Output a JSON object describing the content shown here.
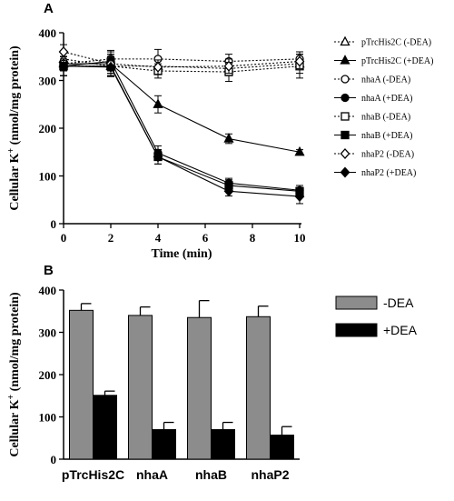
{
  "chart_data": [
    {
      "panel": "A",
      "type": "line",
      "xlabel": "Time (min)",
      "ylabel_main": "Cellular K",
      "ylabel_sup": "+",
      "ylabel_tail": " (nmol/mg protein)",
      "xlim": [
        0,
        10
      ],
      "ylim": [
        0,
        400
      ],
      "x_ticks": [
        "0",
        "2",
        "4",
        "6",
        "8",
        "10"
      ],
      "y_ticks": [
        "0",
        "100",
        "200",
        "300",
        "400"
      ],
      "legend_position": "right",
      "x": [
        0,
        2,
        4,
        7,
        10
      ],
      "series": [
        {
          "name": "pTrcHis2C (-DEA)",
          "marker": "triangle",
          "filled": false,
          "dotted": true,
          "values": [
            345,
            330,
            330,
            325,
            335
          ],
          "err": [
            15,
            20,
            15,
            15,
            20
          ]
        },
        {
          "name": "pTrcHis2C (+DEA)",
          "marker": "triangle",
          "filled": true,
          "dotted": false,
          "values": [
            335,
            335,
            250,
            178,
            150
          ],
          "err": [
            15,
            20,
            18,
            10,
            5
          ]
        },
        {
          "name": "nhaA (-DEA)",
          "marker": "circle",
          "filled": false,
          "dotted": true,
          "values": [
            335,
            345,
            345,
            340,
            345
          ],
          "err": [
            15,
            18,
            20,
            15,
            15
          ]
        },
        {
          "name": "nhaA (+DEA)",
          "marker": "circle",
          "filled": true,
          "dotted": false,
          "values": [
            330,
            340,
            148,
            85,
            70
          ],
          "err": [
            20,
            20,
            15,
            10,
            10
          ]
        },
        {
          "name": "nhaB (-DEA)",
          "marker": "square",
          "filled": false,
          "dotted": true,
          "values": [
            330,
            330,
            320,
            318,
            330
          ],
          "err": [
            20,
            20,
            15,
            20,
            25
          ]
        },
        {
          "name": "nhaB (+DEA)",
          "marker": "square",
          "filled": true,
          "dotted": false,
          "values": [
            330,
            330,
            140,
            80,
            68
          ],
          "err": [
            20,
            20,
            15,
            12,
            8
          ]
        },
        {
          "name": "nhaP2 (-DEA)",
          "marker": "diamond",
          "filled": false,
          "dotted": true,
          "values": [
            360,
            335,
            328,
            330,
            340
          ],
          "err": [
            15,
            20,
            15,
            15,
            15
          ]
        },
        {
          "name": "nhaP2 (+DEA)",
          "marker": "diamond",
          "filled": true,
          "dotted": false,
          "values": [
            330,
            328,
            140,
            68,
            57
          ],
          "err": [
            20,
            20,
            15,
            10,
            15
          ]
        }
      ]
    },
    {
      "panel": "B",
      "type": "bar",
      "ylabel_main": "Cellular K",
      "ylabel_sup": "+",
      "ylabel_tail": " (nmol/mg protein)",
      "ylim": [
        0,
        400
      ],
      "y_ticks": [
        "0",
        "100",
        "200",
        "300",
        "400"
      ],
      "legend_position": "top-right",
      "categories": [
        "pTrcHis2C",
        "nhaA",
        "nhaB",
        "nhaP2"
      ],
      "series": [
        {
          "name": "-DEA",
          "color": "#8c8c8c",
          "values": [
            352,
            340,
            335,
            337
          ],
          "err": [
            16,
            20,
            40,
            25
          ]
        },
        {
          "name": "+DEA",
          "color": "#000000",
          "values": [
            151,
            70,
            70,
            57
          ],
          "err": [
            10,
            17,
            17,
            20
          ]
        }
      ]
    }
  ]
}
